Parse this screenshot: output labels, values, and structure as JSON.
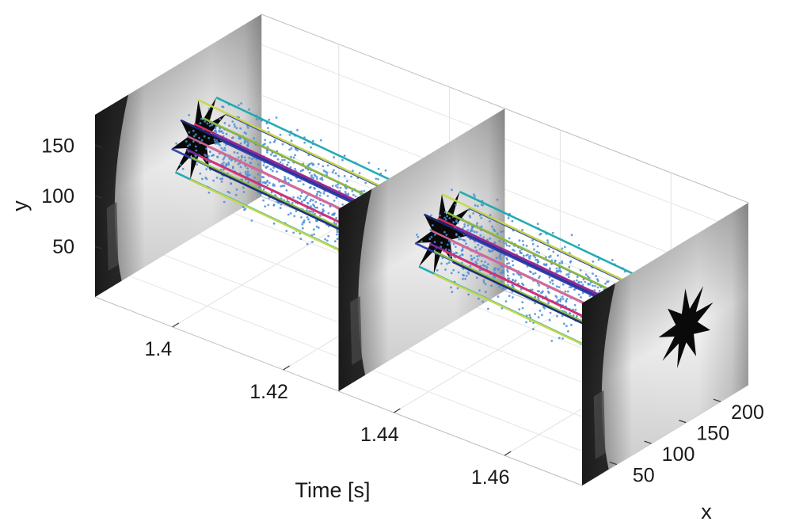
{
  "chart_data": {
    "type": "scatter",
    "projection": "3d",
    "title": "",
    "axes": {
      "time": {
        "label": "Time [s]",
        "ticks": [
          1.4,
          1.42,
          1.44,
          1.46
        ],
        "tick_labels": [
          "1.4",
          "1.42",
          "1.44",
          "1.46"
        ],
        "range": [
          1.386,
          1.474
        ]
      },
      "x": {
        "label": "x",
        "ticks": [
          50,
          100,
          150,
          200
        ],
        "tick_labels": [
          "50",
          "100",
          "150",
          "200"
        ],
        "range": [
          0,
          240
        ]
      },
      "y": {
        "label": "y",
        "ticks": [
          50,
          100,
          150
        ],
        "tick_labels": [
          "50",
          "100",
          "150"
        ],
        "range": [
          0,
          180
        ]
      }
    },
    "grid": true,
    "frames": [
      {
        "time": 1.386,
        "content": "grayscale camera frame with star target"
      },
      {
        "time": 1.43,
        "content": "grayscale camera frame with star target"
      },
      {
        "time": 1.474,
        "content": "grayscale camera frame with star target"
      }
    ],
    "series": [
      {
        "kind": "events",
        "color": "#4a8fd6"
      },
      {
        "kind": "feature-tracks",
        "colors": [
          "#2b3cae",
          "#7b2aa8",
          "#1aa8b0",
          "#8bc43a",
          "#c8d94a",
          "#e0306a",
          "#1b2a7a",
          "#d06a9a"
        ]
      }
    ]
  }
}
